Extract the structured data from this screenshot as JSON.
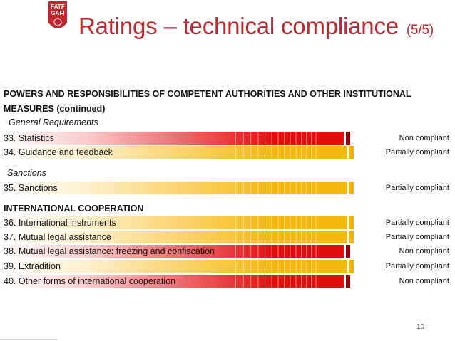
{
  "header": {
    "logo_text_top": "FATF",
    "logo_text_bottom": "GAFI",
    "title": "Ratings – technical compliance",
    "title_suffix": "(5/5)"
  },
  "section1": {
    "heading_line1": "POWERS AND RESPONSIBILITIES OF COMPETENT AUTHORITIES AND OTHER INSTITUTIONAL",
    "heading_line2": "MEASURES (continued)",
    "sub1": "General Requirements",
    "sub2": "Sanctions"
  },
  "section2": {
    "heading": "INTERNATIONAL COOPERATION"
  },
  "colors": {
    "non_compliant": "#e00000",
    "partially_compliant": "#f5b400"
  },
  "rows": [
    {
      "label": "33. Statistics",
      "rating": "Non compliant",
      "type": "nc"
    },
    {
      "label": "34. Guidance and feedback",
      "rating": "Partially compliant",
      "type": "pc"
    },
    {
      "label": "35. Sanctions",
      "rating": "Partially compliant",
      "type": "pc"
    },
    {
      "label": "36. International instruments",
      "rating": "Partially compliant",
      "type": "pc"
    },
    {
      "label": "37. Mutual legal assistance",
      "rating": "Partially compliant",
      "type": "pc"
    },
    {
      "label": "38. Mutual legal assistance: freezing and confiscation",
      "rating": "Non compliant",
      "type": "nc"
    },
    {
      "label": "39. Extradition",
      "rating": "Partially compliant",
      "type": "pc"
    },
    {
      "label": "40. Other forms of international cooperation",
      "rating": "Non compliant",
      "type": "nc"
    }
  ],
  "page_number": "10"
}
